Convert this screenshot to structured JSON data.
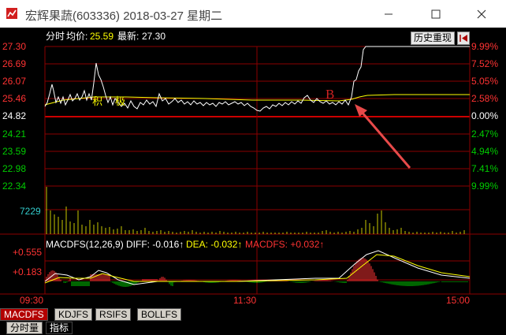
{
  "window": {
    "title": "宏辉果蔬(603336) 2018-03-27 星期二"
  },
  "header": {
    "label_fenshi": "分时",
    "label_avg": "均价:",
    "avg_value": "25.59",
    "label_latest": "最新:",
    "latest_value": "27.30",
    "history_button": "历史重现"
  },
  "price_axis": {
    "left_labels": [
      "27.30",
      "26.69",
      "26.07",
      "25.46",
      "24.82",
      "24.21",
      "23.59",
      "22.98",
      "22.34"
    ],
    "right_labels": [
      "9.99%",
      "7.52%",
      "5.05%",
      "2.58%",
      "0.00%",
      "2.47%",
      "4.94%",
      "7.41%",
      "9.99%"
    ]
  },
  "volume_axis": {
    "label": "7229"
  },
  "macd": {
    "title": "MACDFS(12,26,9)",
    "diff_label": "DIFF: -0.016↑",
    "dea_label": "DEA: -0.032↑",
    "macdfs_label": "MACDFS: +0.032↑",
    "axis_top": "+0.555",
    "axis_mid": "+0.183"
  },
  "time_axis": {
    "start": "09:30",
    "mid": "11:30",
    "end": "15:00"
  },
  "annotations": {
    "marker_b": "B",
    "text_1": "积",
    "text_2": "极"
  },
  "indicator_tabs": [
    "MACDFS",
    "KDJFS",
    "RSIFS",
    "BOLLFS"
  ],
  "bottom_tabs": [
    "分时量",
    "指标"
  ],
  "colors": {
    "grid_red": "#8b0000",
    "up_red": "#ff3333",
    "down_green": "#00cc00",
    "price_white": "#ffffff",
    "avg_yellow": "#ffff00",
    "volume_yellow": "#c8c800",
    "arrow_red": "#e84a4a"
  }
}
